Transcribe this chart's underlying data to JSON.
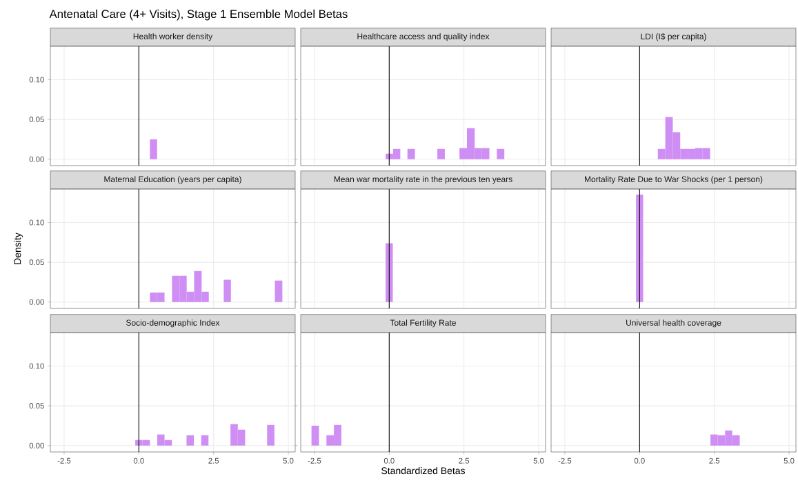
{
  "chart_data": [
    {
      "type": "histogram",
      "title": "Health worker density",
      "annotations": [
        "Antenatal Care (4+ Visits), Stage 1 Ensemble Model Betas"
      ],
      "bins": [
        0.37,
        0.61
      ],
      "values": [
        0.025
      ],
      "color": "#cf8ef4",
      "xlim": [
        -2.96,
        5.23
      ],
      "ylim": [
        -0.008,
        0.142
      ],
      "xticks": [
        {
          "value": -2.5,
          "label": null
        },
        {
          "value": 0,
          "label": null
        },
        {
          "value": 2.5,
          "label": null
        },
        {
          "value": 5,
          "label": null
        }
      ],
      "yticks": [
        {
          "value": 0,
          "label": "0.00"
        },
        {
          "value": 0.05,
          "label": "0.05"
        },
        {
          "value": 0.1,
          "label": "0.10"
        }
      ],
      "grid": true,
      "tick_labels": "y",
      "ref_lines": [
        {
          "axis": "x",
          "value": 0,
          "color": "#000000"
        }
      ]
    },
    {
      "type": "histogram",
      "title": "Healthcare access and quality index",
      "bins": [
        -0.12,
        0.13,
        0.37,
        0.61,
        0.86,
        1.11,
        1.36,
        1.61,
        1.86,
        2.1,
        2.35,
        2.6,
        2.86,
        3.1,
        3.35,
        3.6,
        3.85
      ],
      "values": [
        0.007,
        0.013,
        0,
        0.013,
        0,
        0,
        0,
        0.013,
        0,
        0,
        0.014,
        0.039,
        0.014,
        0.014,
        0,
        0.013
      ],
      "color": "#cf8ef4",
      "xlim": [
        -2.96,
        5.23
      ],
      "ylim": [
        -0.008,
        0.142
      ],
      "xticks": [
        {
          "value": -2.5,
          "label": null
        },
        {
          "value": 0,
          "label": null
        },
        {
          "value": 2.5,
          "label": null
        },
        {
          "value": 5,
          "label": null
        }
      ],
      "yticks": [
        {
          "value": 0,
          "label": null
        },
        {
          "value": 0.05,
          "label": null
        },
        {
          "value": 0.1,
          "label": null
        }
      ],
      "grid": true,
      "tick_labels": false,
      "ref_lines": [
        {
          "axis": "x",
          "value": 0,
          "color": "#000000"
        }
      ]
    },
    {
      "type": "histogram",
      "title": "LDI (I$ per capita)",
      "bins": [
        0.61,
        0.86,
        1.11,
        1.36,
        1.61,
        1.86,
        2.11,
        2.36
      ],
      "values": [
        0.013,
        0.053,
        0.034,
        0.013,
        0.013,
        0.014,
        0.014
      ],
      "color": "#cf8ef4",
      "xlim": [
        -2.96,
        5.23
      ],
      "ylim": [
        -0.008,
        0.142
      ],
      "xticks": [
        {
          "value": -2.5,
          "label": null
        },
        {
          "value": 0,
          "label": null
        },
        {
          "value": 2.5,
          "label": null
        },
        {
          "value": 5,
          "label": null
        }
      ],
      "yticks": [
        {
          "value": 0,
          "label": null
        },
        {
          "value": 0.05,
          "label": null
        },
        {
          "value": 0.1,
          "label": null
        }
      ],
      "grid": true,
      "tick_labels": false,
      "ref_lines": [
        {
          "axis": "x",
          "value": 0,
          "color": "#000000"
        }
      ]
    },
    {
      "type": "histogram",
      "title": "Maternal Education (years per capita)",
      "ylabel": "Density",
      "bins": [
        0.37,
        0.61,
        0.86,
        1.11,
        1.36,
        1.6,
        1.85,
        2.1,
        2.34,
        2.59,
        2.84,
        3.08,
        3.33,
        3.57,
        3.82,
        4.06,
        4.31,
        4.55,
        4.8
      ],
      "values": [
        0.012,
        0.012,
        0,
        0.033,
        0.033,
        0.013,
        0.039,
        0.013,
        0,
        0,
        0.028,
        0,
        0,
        0,
        0,
        0,
        0,
        0.027
      ],
      "color": "#cf8ef4",
      "xlim": [
        -2.96,
        5.23
      ],
      "ylim": [
        -0.008,
        0.142
      ],
      "xticks": [
        {
          "value": -2.5,
          "label": null
        },
        {
          "value": 0,
          "label": null
        },
        {
          "value": 2.5,
          "label": null
        },
        {
          "value": 5,
          "label": null
        }
      ],
      "yticks": [
        {
          "value": 0,
          "label": "0.00"
        },
        {
          "value": 0.05,
          "label": "0.05"
        },
        {
          "value": 0.1,
          "label": "0.10"
        }
      ],
      "grid": true,
      "tick_labels": "y",
      "ref_lines": [
        {
          "axis": "x",
          "value": 0,
          "color": "#000000"
        }
      ]
    },
    {
      "type": "histogram",
      "title": "Mean war mortality rate in the previous ten years",
      "bins": [
        -0.12,
        0.12
      ],
      "values": [
        0.074
      ],
      "color": "#cf8ef4",
      "xlim": [
        -2.96,
        5.23
      ],
      "ylim": [
        -0.008,
        0.142
      ],
      "xticks": [
        {
          "value": -2.5,
          "label": null
        },
        {
          "value": 0,
          "label": null
        },
        {
          "value": 2.5,
          "label": null
        },
        {
          "value": 5,
          "label": null
        }
      ],
      "yticks": [
        {
          "value": 0,
          "label": null
        },
        {
          "value": 0.05,
          "label": null
        },
        {
          "value": 0.1,
          "label": null
        }
      ],
      "grid": true,
      "tick_labels": false,
      "ref_lines": [
        {
          "axis": "x",
          "value": 0,
          "color": "#000000"
        }
      ]
    },
    {
      "type": "histogram",
      "title": "Mortality Rate Due to War Shocks (per 1 person)",
      "bins": [
        -0.12,
        0.12
      ],
      "values": [
        0.135
      ],
      "color": "#cf8ef4",
      "xlim": [
        -2.96,
        5.23
      ],
      "ylim": [
        -0.008,
        0.142
      ],
      "xticks": [
        {
          "value": -2.5,
          "label": null
        },
        {
          "value": 0,
          "label": null
        },
        {
          "value": 2.5,
          "label": null
        },
        {
          "value": 5,
          "label": null
        }
      ],
      "yticks": [
        {
          "value": 0,
          "label": null
        },
        {
          "value": 0.05,
          "label": null
        },
        {
          "value": 0.1,
          "label": null
        }
      ],
      "grid": true,
      "tick_labels": false,
      "ref_lines": [
        {
          "axis": "x",
          "value": 0,
          "color": "#000000"
        }
      ]
    },
    {
      "type": "histogram",
      "title": "Socio-demographic Index",
      "bins": [
        -0.12,
        0.125,
        0.37,
        0.615,
        0.86,
        1.105,
        1.35,
        1.595,
        1.84,
        2.085,
        2.33,
        2.575,
        2.82,
        3.065,
        3.31,
        3.555,
        3.8,
        4.045,
        4.29,
        4.535
      ],
      "values": [
        0.007,
        0.007,
        0,
        0.014,
        0.007,
        0,
        0,
        0.013,
        0,
        0.013,
        0,
        0,
        0,
        0.027,
        0.02,
        0,
        0,
        0,
        0.026
      ],
      "color": "#cf8ef4",
      "xlim": [
        -2.96,
        5.23
      ],
      "ylim": [
        -0.008,
        0.142
      ],
      "xticks": [
        {
          "value": -2.5,
          "label": "-2.5"
        },
        {
          "value": 0,
          "label": "0.0"
        },
        {
          "value": 2.5,
          "label": "2.5"
        },
        {
          "value": 5,
          "label": "5.0"
        }
      ],
      "yticks": [
        {
          "value": 0,
          "label": "0.00"
        },
        {
          "value": 0.05,
          "label": "0.05"
        },
        {
          "value": 0.1,
          "label": "0.10"
        }
      ],
      "grid": true,
      "ref_lines": [
        {
          "axis": "x",
          "value": 0,
          "color": "#000000"
        }
      ]
    },
    {
      "type": "histogram",
      "title": "Total Fertility Rate",
      "xlabel": "Standardized Betas",
      "bins": [
        -2.6,
        -2.35,
        -2.1,
        -1.85,
        -1.6
      ],
      "values": [
        0.025,
        0,
        0.013,
        0.026
      ],
      "color": "#cf8ef4",
      "xlim": [
        -2.96,
        5.23
      ],
      "ylim": [
        -0.008,
        0.142
      ],
      "xticks": [
        {
          "value": -2.5,
          "label": "-2.5"
        },
        {
          "value": 0,
          "label": "0.0"
        },
        {
          "value": 2.5,
          "label": "2.5"
        },
        {
          "value": 5,
          "label": "5.0"
        }
      ],
      "yticks": [
        {
          "value": 0,
          "label": null
        },
        {
          "value": 0.05,
          "label": null
        },
        {
          "value": 0.1,
          "label": null
        }
      ],
      "grid": true,
      "tick_labels": "x",
      "ref_lines": [
        {
          "axis": "x",
          "value": 0,
          "color": "#000000"
        }
      ]
    },
    {
      "type": "histogram",
      "title": "Universal health coverage",
      "bins": [
        2.37,
        2.61,
        2.86,
        3.1,
        3.35
      ],
      "values": [
        0.014,
        0.013,
        0.019,
        0.013
      ],
      "color": "#cf8ef4",
      "xlim": [
        -2.96,
        5.23
      ],
      "ylim": [
        -0.008,
        0.142
      ],
      "xticks": [
        {
          "value": -2.5,
          "label": "-2.5"
        },
        {
          "value": 0,
          "label": "0.0"
        },
        {
          "value": 2.5,
          "label": "2.5"
        },
        {
          "value": 5,
          "label": "5.0"
        }
      ],
      "yticks": [
        {
          "value": 0,
          "label": null
        },
        {
          "value": 0.05,
          "label": null
        },
        {
          "value": 0.1,
          "label": null
        }
      ],
      "grid": true,
      "tick_labels": "x",
      "ref_lines": [
        {
          "axis": "x",
          "value": 0,
          "color": "#000000"
        }
      ]
    }
  ]
}
